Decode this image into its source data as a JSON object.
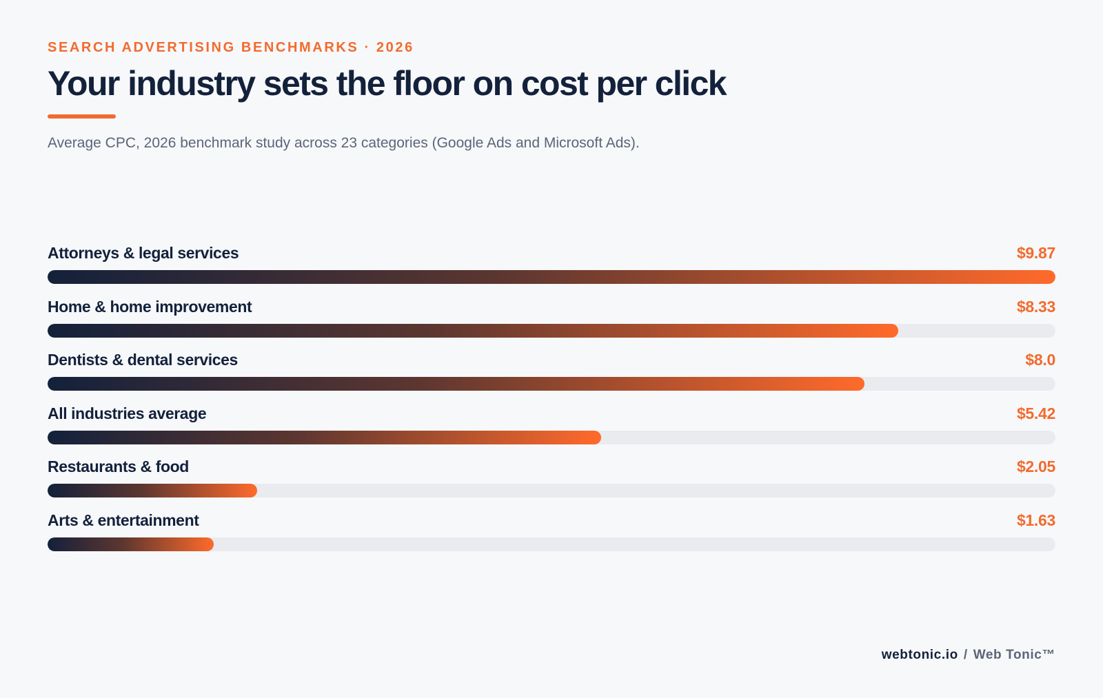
{
  "header": {
    "eyebrow": "SEARCH ADVERTISING BENCHMARKS · 2026",
    "title": "Your industry sets the floor on cost per click",
    "subtitle": "Average CPC, 2026 benchmark study across 23 categories (Google Ads and Microsoft Ads)."
  },
  "chart_data": {
    "type": "bar",
    "orientation": "horizontal",
    "categories": [
      "Attorneys & legal services",
      "Home & home improvement",
      "Dentists & dental services",
      "All industries average",
      "Restaurants & food",
      "Arts & entertainment"
    ],
    "values": [
      9.87,
      8.33,
      8.0,
      5.42,
      2.05,
      1.63
    ],
    "value_labels": [
      "$9.87",
      "$8.33",
      "$8.0",
      "$5.42",
      "$2.05",
      "$1.63"
    ],
    "xlim": [
      0,
      9.87
    ],
    "grid": false,
    "legend": "none",
    "colors": {
      "bar_start": "#13213b",
      "bar_end": "#ff6a2b",
      "track": "#e9ebef",
      "value": "#f26b2e"
    }
  },
  "footer": {
    "domain": "webtonic.io",
    "separator": "/",
    "brand": "Web Tonic™"
  }
}
